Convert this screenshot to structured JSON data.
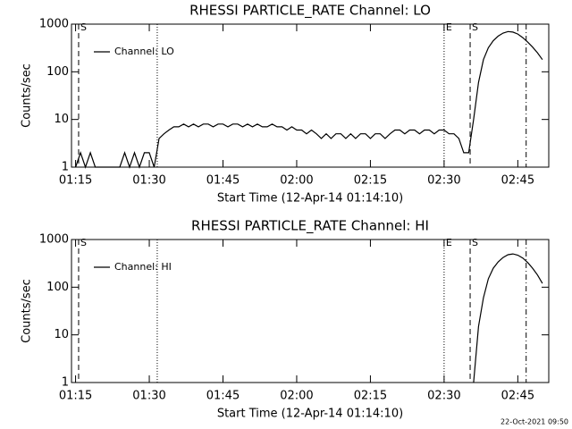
{
  "chart_data": [
    {
      "type": "line",
      "title": "RHESSI PARTICLE_RATE Channel: LO",
      "xlabel": "Start Time (12-Apr-14 01:14:10)",
      "ylabel": "Counts/sec",
      "log_y": true,
      "legend": "top-left",
      "xlim": [
        74.17,
        171.3
      ],
      "xticks": [
        {
          "value": 75,
          "label": "01:15"
        },
        {
          "value": 90,
          "label": "01:30"
        },
        {
          "value": 105,
          "label": "01:45"
        },
        {
          "value": 120,
          "label": "02:00"
        },
        {
          "value": 135,
          "label": "02:15"
        },
        {
          "value": 150,
          "label": "02:30"
        },
        {
          "value": 165,
          "label": "02:45"
        }
      ],
      "ylim": [
        1,
        1000
      ],
      "yticks": [
        1,
        10,
        100,
        1000
      ],
      "markers": [
        {
          "x": 75.62,
          "style": "dashed",
          "label": "S"
        },
        {
          "x": 91.62,
          "style": "dotted"
        },
        {
          "x": 150.0,
          "style": "dotted",
          "label": "E"
        },
        {
          "x": 155.3,
          "style": "dashed",
          "label": "S"
        },
        {
          "x": 166.7,
          "style": "dashdot"
        }
      ],
      "x": [
        75,
        76,
        77,
        78,
        79,
        80,
        81,
        82,
        83,
        84,
        85,
        86,
        87,
        88,
        89,
        90,
        91,
        92,
        93,
        94,
        95,
        96,
        97,
        98,
        99,
        100,
        101,
        102,
        103,
        104,
        105,
        106,
        107,
        108,
        109,
        110,
        111,
        112,
        113,
        114,
        115,
        116,
        117,
        118,
        119,
        120,
        121,
        122,
        123,
        124,
        125,
        126,
        127,
        128,
        129,
        130,
        131,
        132,
        133,
        134,
        135,
        136,
        137,
        138,
        139,
        140,
        141,
        142,
        143,
        144,
        145,
        146,
        147,
        148,
        149,
        150,
        151,
        152,
        153,
        154,
        155,
        156,
        157,
        158,
        159,
        160,
        161,
        162,
        163,
        164,
        165,
        166,
        167,
        168,
        169,
        170
      ],
      "series": [
        {
          "name": "Channel: LO",
          "color": "#000000",
          "values": [
            1,
            2,
            1,
            2,
            1,
            1,
            1,
            1,
            1,
            1,
            2,
            1,
            2,
            1,
            2,
            2,
            1,
            4,
            5,
            6,
            7,
            7,
            8,
            7,
            8,
            7,
            8,
            8,
            7,
            8,
            8,
            7,
            8,
            8,
            7,
            8,
            7,
            8,
            7,
            7,
            8,
            7,
            7,
            6,
            7,
            6,
            6,
            5,
            6,
            5,
            4,
            5,
            4,
            5,
            5,
            4,
            5,
            4,
            5,
            5,
            4,
            5,
            5,
            4,
            5,
            6,
            6,
            5,
            6,
            6,
            5,
            6,
            6,
            5,
            6,
            6,
            5,
            5,
            4,
            2,
            2,
            10,
            60,
            180,
            320,
            450,
            560,
            650,
            700,
            680,
            620,
            520,
            420,
            330,
            250,
            180
          ]
        }
      ]
    },
    {
      "type": "line",
      "title": "RHESSI PARTICLE_RATE Channel: HI",
      "xlabel": "Start Time (12-Apr-14 01:14:10)",
      "ylabel": "Counts/sec",
      "log_y": true,
      "legend": "top-left",
      "xlim": [
        74.17,
        171.3
      ],
      "xticks": [
        {
          "value": 75,
          "label": "01:15"
        },
        {
          "value": 90,
          "label": "01:30"
        },
        {
          "value": 105,
          "label": "01:45"
        },
        {
          "value": 120,
          "label": "02:00"
        },
        {
          "value": 135,
          "label": "02:15"
        },
        {
          "value": 150,
          "label": "02:30"
        },
        {
          "value": 165,
          "label": "02:45"
        }
      ],
      "ylim": [
        1,
        1000
      ],
      "yticks": [
        1,
        10,
        100,
        1000
      ],
      "markers": [
        {
          "x": 75.62,
          "style": "dashed",
          "label": "S"
        },
        {
          "x": 91.62,
          "style": "dotted"
        },
        {
          "x": 150.0,
          "style": "dotted",
          "label": "E"
        },
        {
          "x": 155.3,
          "style": "dashed",
          "label": "S"
        },
        {
          "x": 166.7,
          "style": "dashdot"
        }
      ],
      "x": [
        156,
        157,
        158,
        159,
        160,
        161,
        162,
        163,
        164,
        165,
        166,
        167,
        168,
        169,
        170
      ],
      "series": [
        {
          "name": "Channel: HI",
          "color": "#000000",
          "values": [
            1,
            15,
            60,
            150,
            250,
            340,
            420,
            480,
            500,
            470,
            410,
            330,
            250,
            180,
            120
          ]
        }
      ]
    }
  ],
  "footer": "22-Oct-2021 09:50"
}
